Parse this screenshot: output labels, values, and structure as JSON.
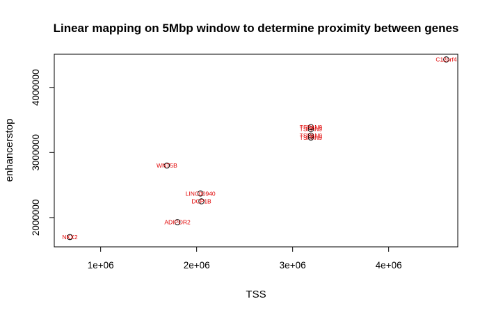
{
  "chart_data": {
    "type": "scatter",
    "title": "Linear mapping on 5Mbp window to determine proximity between genes",
    "xlabel": "TSS",
    "ylabel": "enhancerstop",
    "xlim": [
      517000,
      4720000
    ],
    "ylim": [
      1550000,
      4510000
    ],
    "xticks": [
      1000000,
      2000000,
      3000000,
      4000000
    ],
    "xtick_labels": [
      "1e+06",
      "2e+06",
      "3e+06",
      "4e+06"
    ],
    "yticks": [
      2000000,
      3000000,
      4000000
    ],
    "ytick_labels": [
      "2000000",
      "3000000",
      "4000000"
    ],
    "grid": false,
    "legend": "none",
    "point_color": "#000000",
    "label_color": "#e00000",
    "points": [
      {
        "label": "NKX2",
        "x": 680000,
        "y": 1700000
      },
      {
        "label": "ADIPOR2",
        "x": 1800000,
        "y": 1930000
      },
      {
        "label": "DCP1B",
        "x": 2050000,
        "y": 2250000
      },
      {
        "label": "LINC00940",
        "x": 2040000,
        "y": 2370000
      },
      {
        "label": "WNT5B",
        "x": 1690000,
        "y": 2800000
      },
      {
        "label": "TSPAN9",
        "x": 3190000,
        "y": 3230000
      },
      {
        "label": "TSPAN9",
        "x": 3190000,
        "y": 3260000
      },
      {
        "label": "TSPAN9",
        "x": 3190000,
        "y": 3360000
      },
      {
        "label": "TSPAN9",
        "x": 3190000,
        "y": 3390000
      },
      {
        "label": "C12orf4",
        "x": 4600000,
        "y": 4430000
      }
    ]
  }
}
